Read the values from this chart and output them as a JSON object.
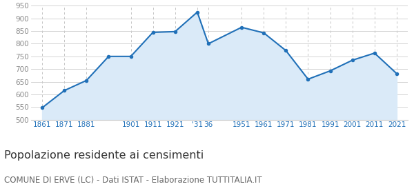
{
  "x_positions": [
    1861,
    1871,
    1881,
    1891,
    1901,
    1911,
    1921,
    1931,
    1936,
    1951,
    1961,
    1971,
    1981,
    1991,
    2001,
    2011,
    2021
  ],
  "y_values": [
    547,
    615,
    655,
    750,
    750,
    845,
    848,
    925,
    800,
    865,
    843,
    773,
    660,
    693,
    735,
    763,
    682
  ],
  "x_tick_positions": [
    1861,
    1871,
    1881,
    1901,
    1911,
    1921,
    1931,
    1936,
    1951,
    1961,
    1971,
    1981,
    1991,
    2001,
    2011,
    2021
  ],
  "x_tick_labels": [
    "1861",
    "1871",
    "1881",
    "1901",
    "1911",
    "1921",
    "'31",
    "36",
    "1951",
    "1961",
    "1971",
    "1981",
    "1991",
    "2001",
    "2011",
    "2021"
  ],
  "line_color": "#2070b8",
  "fill_color": "#daeaf8",
  "marker_color": "#2070b8",
  "background_color": "#ffffff",
  "grid_color_h": "#cccccc",
  "grid_color_v": "#bbbbbb",
  "ylim": [
    500,
    950
  ],
  "yticks": [
    500,
    550,
    600,
    650,
    700,
    750,
    800,
    850,
    900,
    950
  ],
  "xlim_left": 1856,
  "xlim_right": 2026,
  "title": "Popolazione residente ai censimenti",
  "subtitle": "COMUNE DI ERVE (LC) - Dati ISTAT - Elaborazione TUTTITALIA.IT",
  "title_fontsize": 11.5,
  "subtitle_fontsize": 8.5,
  "tick_color": "#2070b8",
  "ytick_color": "#888888",
  "title_color": "#333333",
  "subtitle_color": "#666666"
}
